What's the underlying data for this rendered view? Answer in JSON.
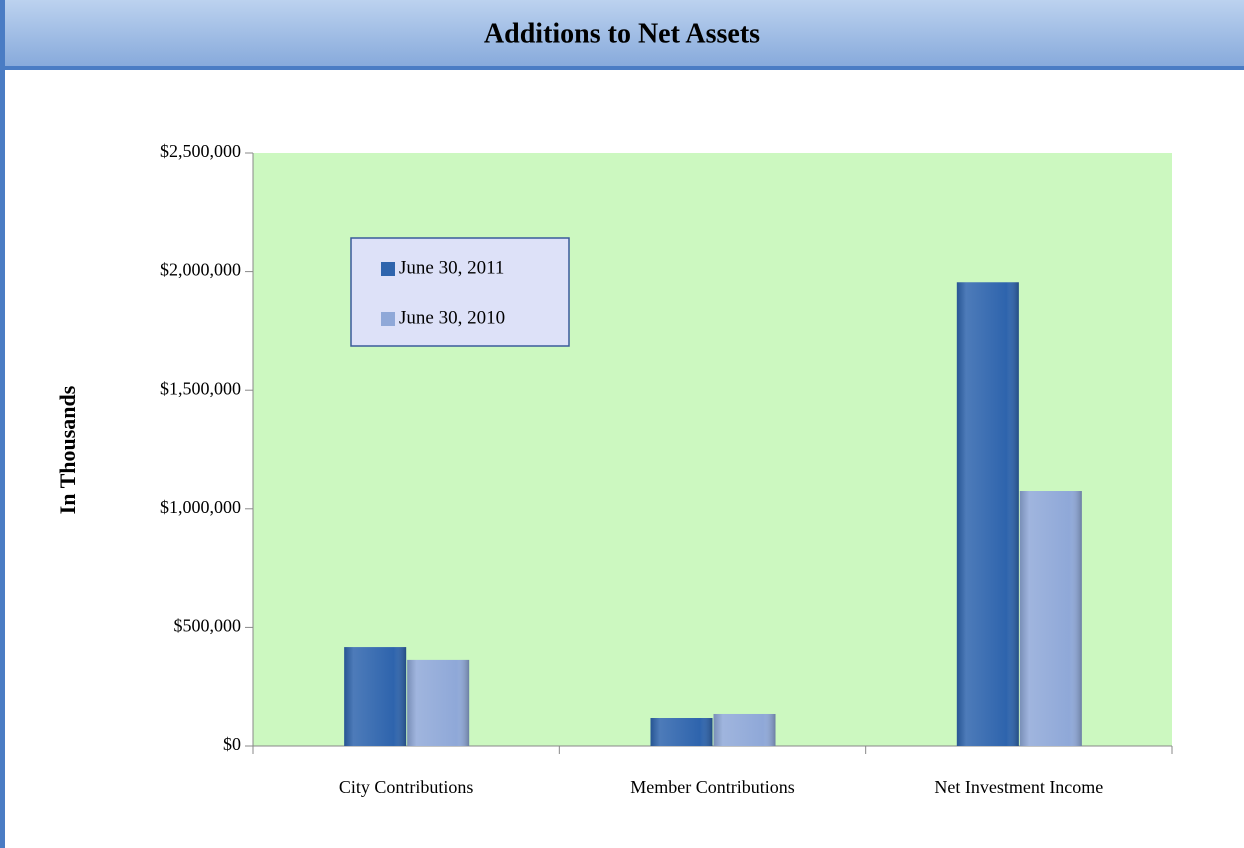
{
  "chart_data": {
    "type": "bar",
    "title": "Additions to Net Assets",
    "y_label": "In Thousands",
    "categories": [
      "City Contributions",
      "Member Contributions",
      "Net Investment Income"
    ],
    "series": [
      {
        "name": "June 30, 2011",
        "color": "#2e64ad",
        "values": [
          417000,
          118000,
          1955000
        ]
      },
      {
        "name": "June 30, 2010",
        "color": "#8fa8d8",
        "values": [
          363000,
          135000,
          1075000
        ]
      }
    ],
    "ylim": [
      0,
      2500000
    ],
    "yticks": [
      {
        "value": 0,
        "label": "$0"
      },
      {
        "value": 500000,
        "label": "$500,000"
      },
      {
        "value": 1000000,
        "label": "$1,000,000"
      },
      {
        "value": 1500000,
        "label": "$1,500,000"
      },
      {
        "value": 2000000,
        "label": "$2,000,000"
      },
      {
        "value": 2500000,
        "label": "$2,500,000"
      }
    ],
    "legend": "upper left"
  }
}
